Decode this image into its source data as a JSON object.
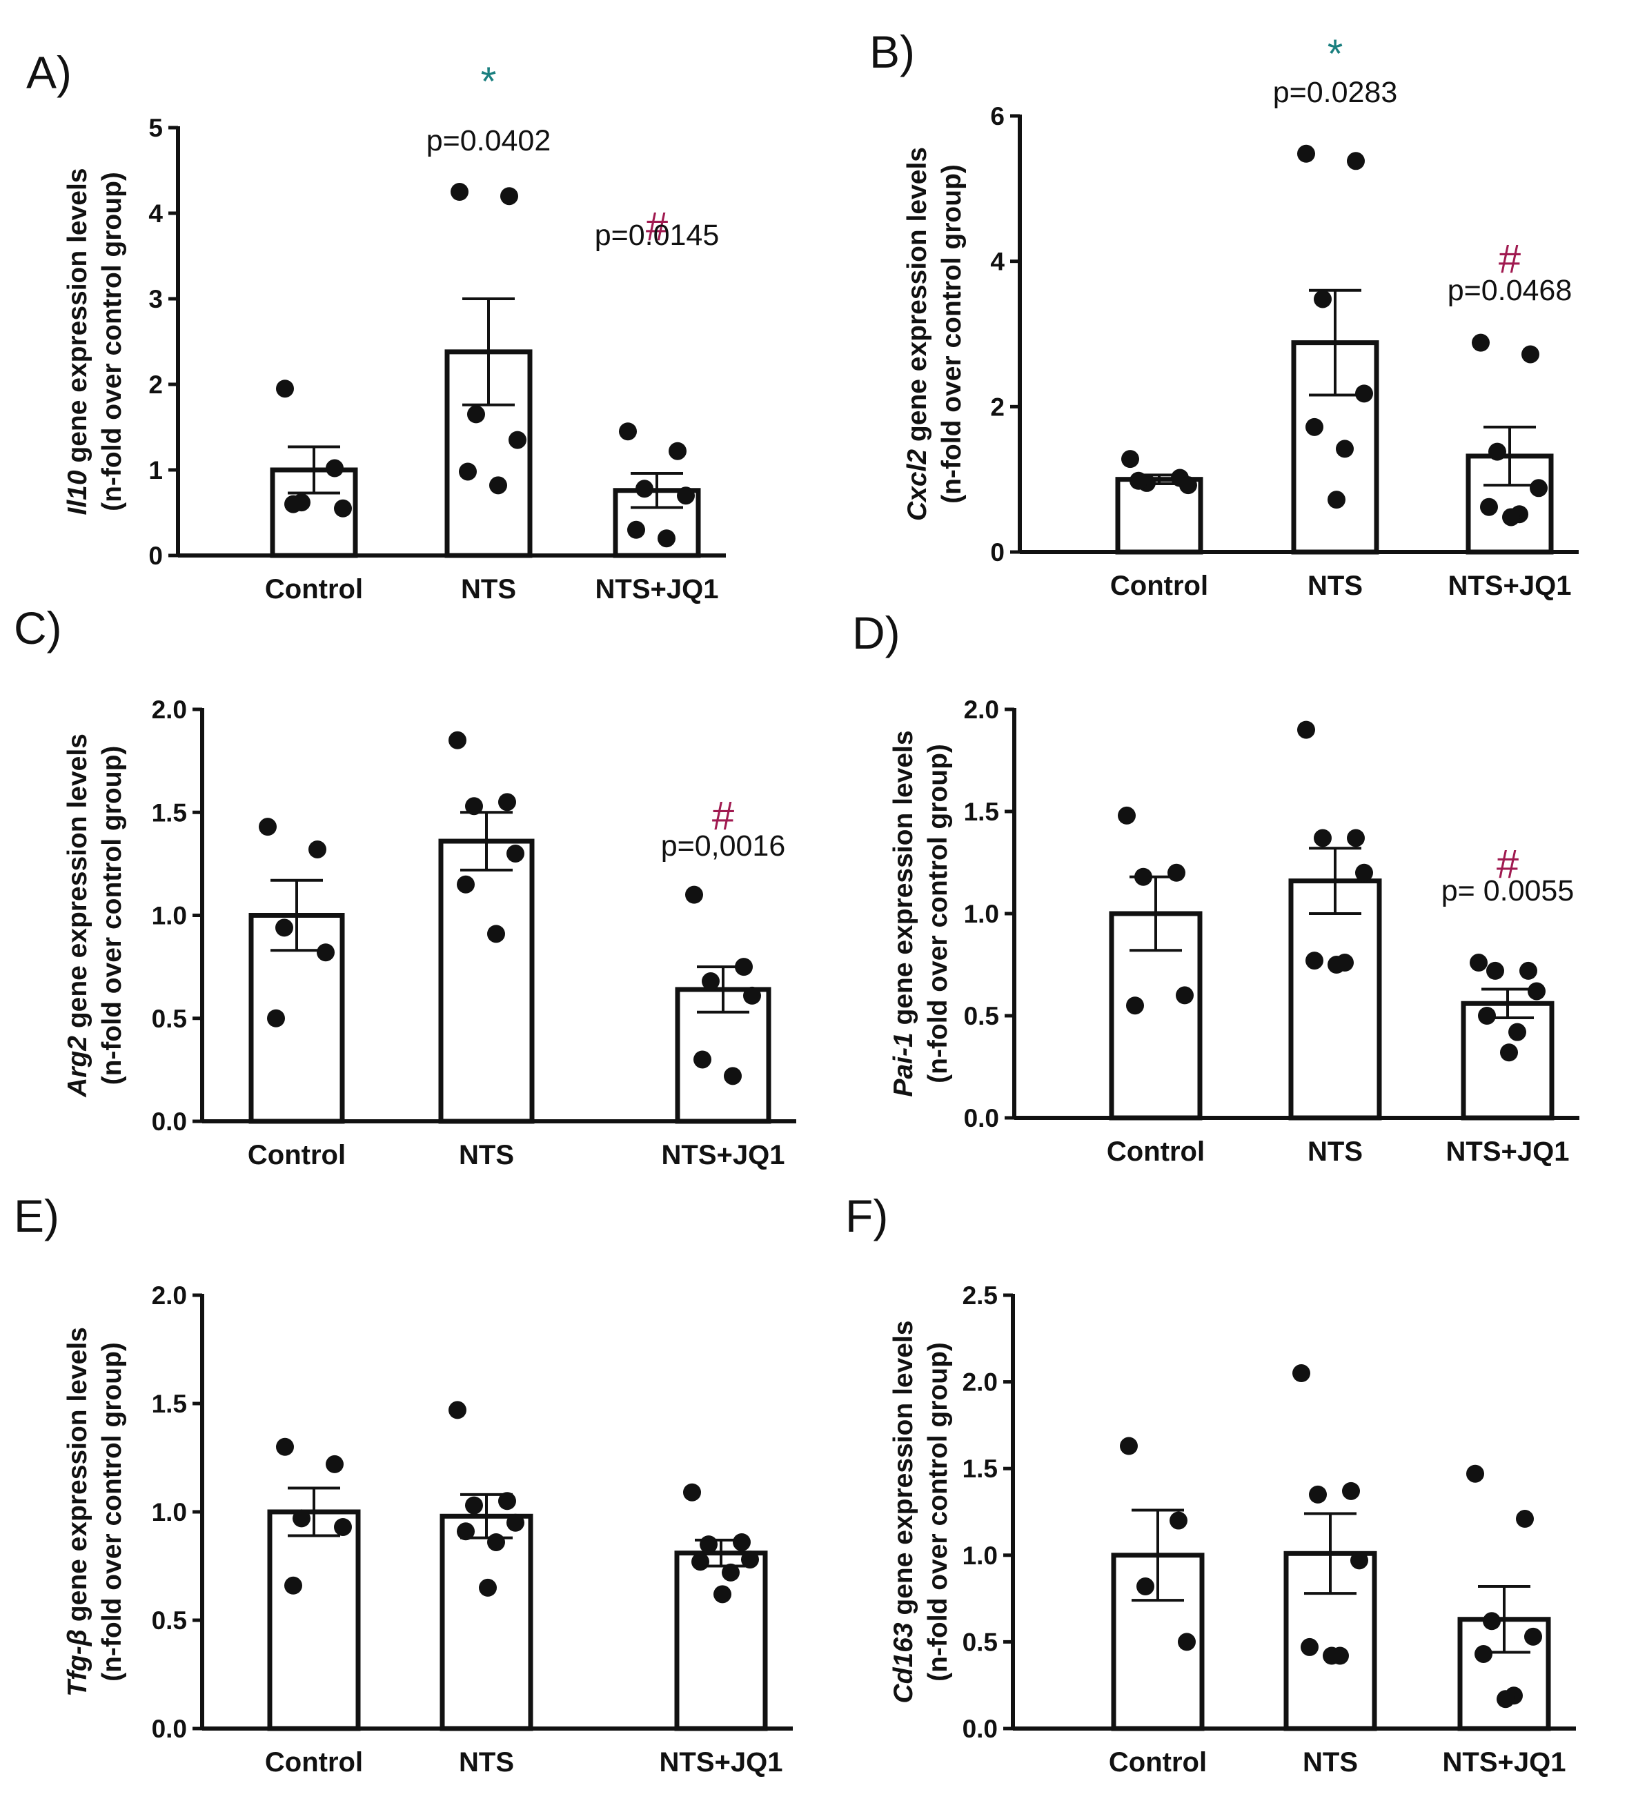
{
  "figure": {
    "category_labels": [
      "Control",
      "NTS",
      "NTS+JQ1"
    ]
  },
  "chart_data": [
    {
      "panel": "A)",
      "type": "bar",
      "gene": "Il10",
      "ylabel_line1_suffix": " gene expression levels",
      "ylabel_line2": "(n-fold over control group)",
      "categories": [
        "Control",
        "NTS",
        "NTS+JQ1"
      ],
      "values": [
        1.0,
        2.38,
        0.76
      ],
      "sem": [
        0.27,
        0.62,
        0.2
      ],
      "points": [
        [
          1.95,
          1.02,
          0.62,
          0.55,
          0.6
        ],
        [
          4.25,
          4.2,
          1.65,
          1.35,
          0.98,
          0.82
        ],
        [
          1.45,
          1.22,
          0.78,
          0.7,
          0.3,
          0.2
        ]
      ],
      "ylim": [
        0,
        5
      ],
      "yticks": [
        0,
        1,
        2,
        3,
        4,
        5
      ],
      "tick_labels": [
        "0",
        "1",
        "2",
        "3",
        "4",
        "5"
      ],
      "annotations": [
        {
          "bar": 1,
          "symbol": "*",
          "color": "#1a7f7f",
          "text": "p=0.0402"
        },
        {
          "bar": 2,
          "symbol": "#",
          "color": "#a01a50",
          "text": "p=0.0145"
        }
      ]
    },
    {
      "panel": "B)",
      "type": "bar",
      "gene": "Cxcl2",
      "ylabel_line1_suffix": " gene expression levels",
      "ylabel_line2": "(n-fold over control group)",
      "categories": [
        "Control",
        "NTS",
        "NTS+JQ1"
      ],
      "values": [
        1.0,
        2.88,
        1.32
      ],
      "sem": [
        0.06,
        0.72,
        0.4
      ],
      "points": [
        [
          1.28,
          1.02,
          0.95,
          0.92,
          0.98
        ],
        [
          5.48,
          5.38,
          3.48,
          2.18,
          1.72,
          1.42,
          0.72
        ],
        [
          2.88,
          2.72,
          1.38,
          0.88,
          0.62,
          0.52,
          0.48
        ]
      ],
      "ylim": [
        0,
        6
      ],
      "yticks": [
        0,
        2,
        4,
        6
      ],
      "tick_labels": [
        "0",
        "2",
        "4",
        "6"
      ],
      "annotations": [
        {
          "bar": 1,
          "symbol": "*",
          "color": "#1a7f7f",
          "text": "p=0.0283"
        },
        {
          "bar": 2,
          "symbol": "#",
          "color": "#a01a50",
          "text": "p=0.0468"
        }
      ]
    },
    {
      "panel": "C)",
      "type": "bar",
      "gene": "Arg2",
      "ylabel_line1_suffix": " gene expression  levels",
      "ylabel_line2": "(n-fold over control group)",
      "categories": [
        "Control",
        "NTS",
        "NTS+JQ1"
      ],
      "values": [
        1.0,
        1.36,
        0.64
      ],
      "sem": [
        0.17,
        0.14,
        0.11
      ],
      "points": [
        [
          1.43,
          1.32,
          0.94,
          0.82,
          0.5
        ],
        [
          1.85,
          1.55,
          1.53,
          1.3,
          1.15,
          0.91
        ],
        [
          1.1,
          0.75,
          0.68,
          0.61,
          0.3,
          0.22
        ]
      ],
      "ylim": [
        0,
        2.0
      ],
      "yticks": [
        0,
        0.5,
        1.0,
        1.5,
        2.0
      ],
      "tick_labels": [
        "0.0",
        "0.5",
        "1.0",
        "1.5",
        "2.0"
      ],
      "annotations": [
        {
          "bar": 2,
          "symbol": "#",
          "color": "#a01a50",
          "text": "p=0,0016"
        }
      ]
    },
    {
      "panel": "D)",
      "type": "bar",
      "gene": "Pai-1",
      "ylabel_line1_suffix": " gene expression  levels",
      "ylabel_line2": "(n-fold over control group)",
      "categories": [
        "Control",
        "NTS",
        "NTS+JQ1"
      ],
      "values": [
        1.0,
        1.16,
        0.56
      ],
      "sem": [
        0.18,
        0.16,
        0.07
      ],
      "points": [
        [
          1.48,
          1.2,
          1.18,
          0.6,
          0.55
        ],
        [
          1.9,
          1.37,
          1.37,
          1.2,
          0.77,
          0.76,
          0.75
        ],
        [
          0.76,
          0.72,
          0.72,
          0.62,
          0.5,
          0.42,
          0.32
        ]
      ],
      "ylim": [
        0,
        2.0
      ],
      "yticks": [
        0,
        0.5,
        1.0,
        1.5,
        2.0
      ],
      "tick_labels": [
        "0.0",
        "0.5",
        "1.0",
        "1.5",
        "2.0"
      ],
      "annotations": [
        {
          "bar": 2,
          "symbol": "#",
          "color": "#a01a50",
          "text": "p= 0.0055"
        }
      ]
    },
    {
      "panel": "E)",
      "type": "bar",
      "gene": "Tfg-β",
      "ylabel_line1_suffix": " gene expression levels",
      "ylabel_line2": "(n-fold over control group)",
      "categories": [
        "Control",
        "NTS",
        "NTS+JQ1"
      ],
      "values": [
        1.0,
        0.98,
        0.81
      ],
      "sem": [
        0.11,
        0.1,
        0.06
      ],
      "points": [
        [
          1.3,
          1.22,
          0.97,
          0.93,
          0.66
        ],
        [
          1.47,
          1.05,
          1.03,
          0.95,
          0.91,
          0.86,
          0.65
        ],
        [
          1.09,
          0.86,
          0.85,
          0.78,
          0.77,
          0.72,
          0.62
        ]
      ],
      "ylim": [
        0,
        2.0
      ],
      "yticks": [
        0,
        0.5,
        1.0,
        1.5,
        2.0
      ],
      "tick_labels": [
        "0.0",
        "0.5",
        "1.0",
        "1.5",
        "2.0"
      ],
      "annotations": []
    },
    {
      "panel": "F)",
      "type": "bar",
      "gene": "Cd163",
      "ylabel_line1_suffix": " gene expression levels",
      "ylabel_line2": "(n-fold over control group)",
      "categories": [
        "Control",
        "NTS",
        "NTS+JQ1"
      ],
      "values": [
        1.0,
        1.01,
        0.63
      ],
      "sem": [
        0.26,
        0.23,
        0.19
      ],
      "points": [
        [
          1.63,
          1.2,
          0.82,
          0.5
        ],
        [
          2.05,
          1.37,
          1.35,
          0.97,
          0.47,
          0.42,
          0.42
        ],
        [
          1.47,
          1.21,
          0.62,
          0.53,
          0.43,
          0.19,
          0.17
        ]
      ],
      "ylim": [
        0,
        2.5
      ],
      "yticks": [
        0,
        0.5,
        1.0,
        1.5,
        2.0,
        2.5
      ],
      "tick_labels": [
        "0.0",
        "0.5",
        "1.0",
        "1.5",
        "2.0",
        "2.5"
      ],
      "annotations": []
    }
  ]
}
